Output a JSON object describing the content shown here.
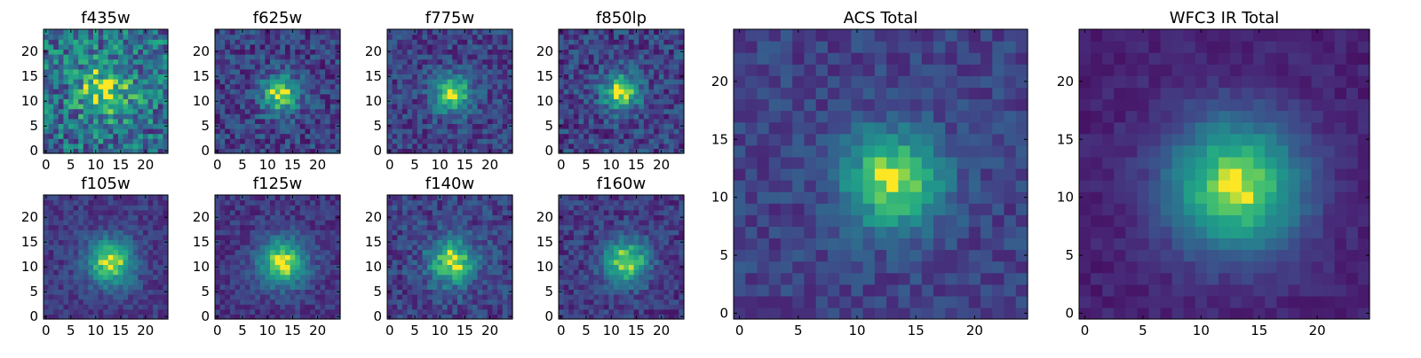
{
  "figure": {
    "colormap": "viridis",
    "colors": {
      "low": "#440154",
      "mid": "#21918c",
      "high": "#fde725",
      "frame": "#000000"
    }
  },
  "chart_data": [
    {
      "type": "heatmap",
      "title": "f435w",
      "xticks": [
        0,
        5,
        10,
        15,
        20
      ],
      "yticks": [
        0,
        5,
        10,
        15,
        20
      ],
      "xlim": [
        0,
        24
      ],
      "ylim": [
        0,
        24
      ],
      "grid": false,
      "source": {
        "cx": 12.0,
        "cy": 12.5,
        "sigma": 4.0,
        "noise": 0.32,
        "bg": 0.45,
        "peak": 0.45,
        "seed": 11
      }
    },
    {
      "type": "heatmap",
      "title": "f625w",
      "xticks": [
        0,
        5,
        10,
        15,
        20
      ],
      "yticks": [
        0,
        5,
        10,
        15,
        20
      ],
      "xlim": [
        0,
        24
      ],
      "ylim": [
        0,
        24
      ],
      "grid": false,
      "source": {
        "cx": 12.5,
        "cy": 11.5,
        "sigma": 2.6,
        "noise": 0.2,
        "bg": 0.25,
        "peak": 0.75,
        "seed": 23
      }
    },
    {
      "type": "heatmap",
      "title": "f775w",
      "xticks": [
        0,
        5,
        10,
        15,
        20
      ],
      "yticks": [
        0,
        5,
        10,
        15,
        20
      ],
      "xlim": [
        0,
        24
      ],
      "ylim": [
        0,
        24
      ],
      "grid": false,
      "source": {
        "cx": 12.5,
        "cy": 11.5,
        "sigma": 2.6,
        "noise": 0.18,
        "bg": 0.25,
        "peak": 0.75,
        "seed": 37
      }
    },
    {
      "type": "heatmap",
      "title": "f850lp",
      "xticks": [
        0,
        5,
        10,
        15,
        20
      ],
      "yticks": [
        0,
        5,
        10,
        15,
        20
      ],
      "xlim": [
        0,
        24
      ],
      "ylim": [
        0,
        24
      ],
      "grid": false,
      "source": {
        "cx": 12.0,
        "cy": 12.0,
        "sigma": 2.6,
        "noise": 0.2,
        "bg": 0.25,
        "peak": 0.75,
        "seed": 41
      }
    },
    {
      "type": "heatmap",
      "title": "f105w",
      "xticks": [
        0,
        5,
        10,
        15,
        20
      ],
      "yticks": [
        0,
        5,
        10,
        15,
        20
      ],
      "xlim": [
        0,
        24
      ],
      "ylim": [
        0,
        24
      ],
      "grid": false,
      "source": {
        "cx": 13.0,
        "cy": 11.0,
        "sigma": 3.3,
        "noise": 0.12,
        "bg": 0.22,
        "peak": 0.78,
        "seed": 53
      }
    },
    {
      "type": "heatmap",
      "title": "f125w",
      "xticks": [
        0,
        5,
        10,
        15,
        20
      ],
      "yticks": [
        0,
        5,
        10,
        15,
        20
      ],
      "xlim": [
        0,
        24
      ],
      "ylim": [
        0,
        24
      ],
      "grid": false,
      "source": {
        "cx": 13.0,
        "cy": 11.0,
        "sigma": 3.4,
        "noise": 0.12,
        "bg": 0.2,
        "peak": 0.8,
        "seed": 67
      }
    },
    {
      "type": "heatmap",
      "title": "f140w",
      "xticks": [
        0,
        5,
        10,
        15,
        20
      ],
      "yticks": [
        0,
        5,
        10,
        15,
        20
      ],
      "xlim": [
        0,
        24
      ],
      "ylim": [
        0,
        24
      ],
      "grid": false,
      "source": {
        "cx": 12.5,
        "cy": 11.0,
        "sigma": 3.2,
        "noise": 0.17,
        "bg": 0.25,
        "peak": 0.75,
        "seed": 79
      }
    },
    {
      "type": "heatmap",
      "title": "f160w",
      "xticks": [
        0,
        5,
        10,
        15,
        20
      ],
      "yticks": [
        0,
        5,
        10,
        15,
        20
      ],
      "xlim": [
        0,
        24
      ],
      "ylim": [
        0,
        24
      ],
      "grid": false,
      "source": {
        "cx": 13.0,
        "cy": 11.0,
        "sigma": 3.1,
        "noise": 0.15,
        "bg": 0.22,
        "peak": 0.78,
        "seed": 83
      }
    },
    {
      "type": "heatmap",
      "title": "ACS Total",
      "xticks": [
        0,
        5,
        10,
        15,
        20
      ],
      "yticks": [
        0,
        5,
        10,
        15,
        20
      ],
      "xlim": [
        0,
        24
      ],
      "ylim": [
        0,
        24
      ],
      "grid": false,
      "source": {
        "cx": 13.0,
        "cy": 11.5,
        "sigma": 2.9,
        "noise": 0.12,
        "bg": 0.25,
        "peak": 0.75,
        "seed": 97
      }
    },
    {
      "type": "heatmap",
      "title": "WFC3 IR Total",
      "xticks": [
        0,
        5,
        10,
        15,
        20
      ],
      "yticks": [
        0,
        5,
        10,
        15,
        20
      ],
      "xlim": [
        0,
        24
      ],
      "ylim": [
        0,
        24
      ],
      "grid": false,
      "source": {
        "cx": 13.0,
        "cy": 11.0,
        "sigma": 4.0,
        "noise": 0.06,
        "bg": 0.12,
        "peak": 0.88,
        "seed": 101
      }
    }
  ]
}
